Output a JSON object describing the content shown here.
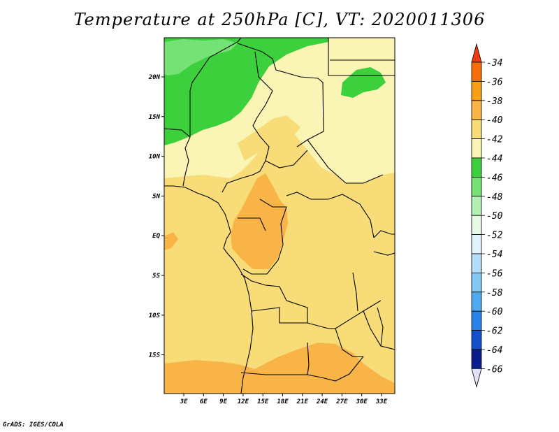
{
  "chart_data": {
    "type": "heatmap",
    "title": "Temperature at 250hPa [C], VT: 2020011306",
    "footer": "GrADS: IGES/COLA",
    "x_ticks": [
      "3E",
      "6E",
      "9E",
      "12E",
      "15E",
      "18E",
      "21E",
      "24E",
      "27E",
      "30E",
      "33E"
    ],
    "y_ticks": [
      "20N",
      "15N",
      "10N",
      "5N",
      "EQ",
      "5S",
      "10S",
      "15S"
    ],
    "colorbar": {
      "levels": [
        "-34",
        "-36",
        "-38",
        "-40",
        "-42",
        "-44",
        "-46",
        "-48",
        "-50",
        "-52",
        "-54",
        "-56",
        "-58",
        "-60",
        "-62",
        "-64",
        "-66"
      ],
      "colors": [
        "#f03c14",
        "#f86e0a",
        "#f8a014",
        "#f8b446",
        "#f8dc78",
        "#faf5b4",
        "#3cd03c",
        "#74e274",
        "#b4f0b4",
        "#e6fae6",
        "#e0f4fc",
        "#b4dcf8",
        "#82c8f4",
        "#50aaf0",
        "#2882e8",
        "#1450c8",
        "#0a1e8c",
        "#e0e0f8"
      ]
    },
    "regions": [
      {
        "label": "-44 to -46",
        "color": "#3cd03c"
      },
      {
        "label": "-46 to -48",
        "color": "#74e274"
      },
      {
        "label": "-42 to -44",
        "color": "#faf5b4"
      },
      {
        "label": "-40 to -42",
        "color": "#f8dc78"
      },
      {
        "label": "-38 to -40",
        "color": "#f8b446"
      }
    ]
  }
}
